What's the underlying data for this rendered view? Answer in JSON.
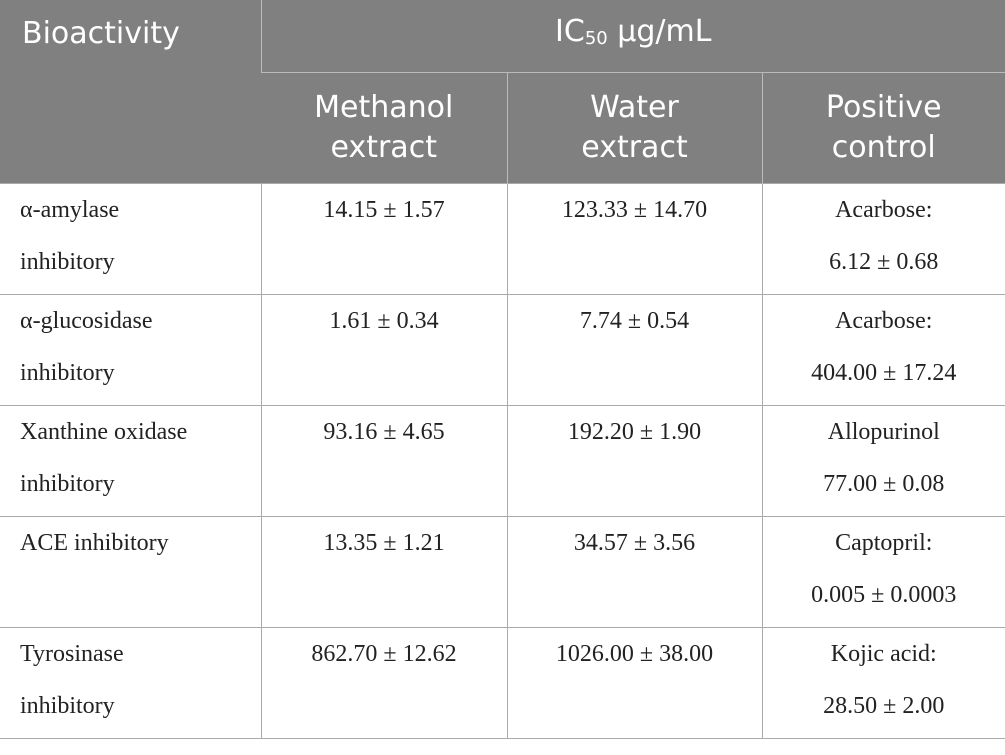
{
  "table": {
    "header": {
      "bioactivity": "Bioactivity",
      "group": {
        "main": "IC",
        "subscript": "50",
        "unit": "μg/mL"
      },
      "columns": [
        [
          "Methanol",
          "extract"
        ],
        [
          "Water",
          "extract"
        ],
        [
          "Positive",
          "control"
        ]
      ]
    },
    "rows": [
      [
        [
          "α-amylase",
          "inhibitory"
        ],
        "14.15 ± 1.57",
        "123.33 ± 14.70",
        [
          "Acarbose:",
          "6.12 ± 0.68"
        ]
      ],
      [
        [
          "α-glucosidase",
          "inhibitory"
        ],
        "1.61 ± 0.34",
        "7.74 ± 0.54",
        [
          "Acarbose:",
          "404.00 ± 17.24"
        ]
      ],
      [
        [
          "Xanthine oxidase",
          "inhibitory"
        ],
        "93.16 ± 4.65",
        "192.20 ± 1.90",
        [
          "Allopurinol",
          "77.00 ± 0.08"
        ]
      ],
      [
        [
          "ACE inhibitory"
        ],
        "13.35 ± 1.21",
        "34.57 ± 3.56",
        [
          "Captopril:",
          "0.005 ± 0.0003"
        ]
      ],
      [
        [
          "Tyrosinase",
          "inhibitory"
        ],
        "862.70 ± 12.62",
        "1026.00 ± 38.00",
        [
          "Kojic acid:",
          "28.50 ± 2.00"
        ]
      ]
    ]
  }
}
